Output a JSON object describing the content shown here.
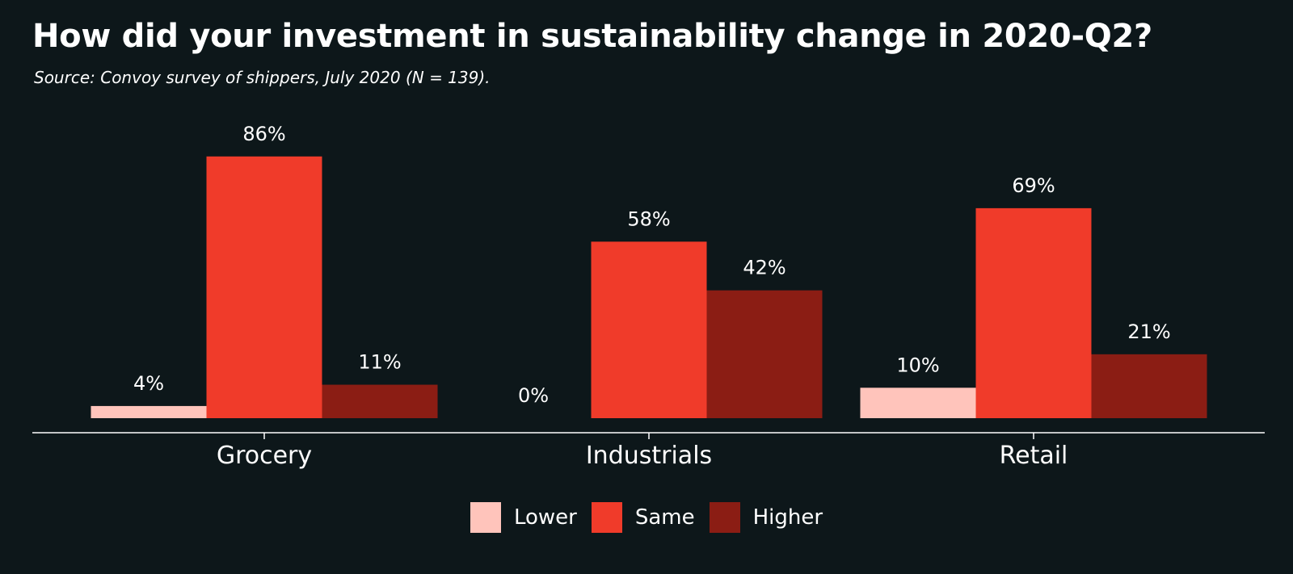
{
  "chart_data": {
    "type": "bar",
    "title": "How did your investment in sustainability change in 2020-Q2?",
    "subtitle": "Source: Convoy survey of shippers, July 2020 (N = 139).",
    "categories": [
      "Grocery",
      "Industrials",
      "Retail"
    ],
    "series": [
      {
        "name": "Lower",
        "color": "#ffc4bb",
        "values": [
          4,
          0,
          10
        ],
        "labels": [
          "4%",
          "0%",
          "10%"
        ]
      },
      {
        "name": "Same",
        "color": "#f03b2a",
        "values": [
          86,
          58,
          69
        ],
        "labels": [
          "86%",
          "58%",
          "69%"
        ]
      },
      {
        "name": "Higher",
        "color": "#8b1d14",
        "values": [
          11,
          42,
          21
        ],
        "labels": [
          "11%",
          "42%",
          "21%"
        ]
      }
    ],
    "ylim": [
      0,
      100
    ],
    "xlabel": "",
    "ylabel": "",
    "grid": false,
    "legend_position": "bottom"
  }
}
